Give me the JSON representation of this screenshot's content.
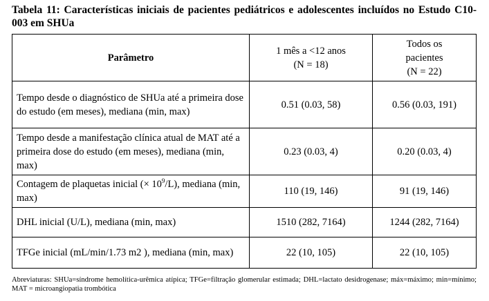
{
  "caption": "Tabela 11: Características iniciais de pacientes pediátricos e adolescentes incluídos no Estudo C10-003 em SHUa",
  "table": {
    "headers": {
      "parameter": "Parâmetro",
      "col1_line1": "1 mês a <12 anos",
      "col1_line2": "(N = 18)",
      "col2_line1": "Todos os",
      "col2_line2": "pacientes",
      "col2_line3": "(N = 22)"
    },
    "rows": [
      {
        "parameter": "Tempo desde o diagnóstico de SHUa até a primeira dose do estudo (em meses), mediana (min, max)",
        "col1": "0.51 (0.03, 58)",
        "col2": "0.56 (0.03, 191)"
      },
      {
        "parameter": "Tempo desde a manifestação clínica atual de MAT até a primeira dose do estudo (em meses), mediana (min, max)",
        "col1": "0.23 (0.03, 4)",
        "col2": "0.20 (0.03, 4)"
      },
      {
        "parameter_pre": "Contagem de plaquetas inicial (× 10",
        "parameter_sup": "9",
        "parameter_post": "/L), mediana (min, max)",
        "col1": "110 (19, 146)",
        "col2": "91 (19, 146)"
      },
      {
        "parameter": "DHL inicial (U/L), mediana (min, max)",
        "col1": "1510 (282, 7164)",
        "col2": "1244 (282, 7164)"
      },
      {
        "parameter": "TFGe inicial (mL/min/1.73 m2 ), mediana (min, max)",
        "col1": "22 (10, 105)",
        "col2": "22 (10, 105)"
      }
    ]
  },
  "footnote": "Abreviaturas: SHUa=síndrome hemolítica-urêmica atípica; TFGe=filtração glomerular estimada; DHL=lactato desidrogenase; máx=máximo; min=mínimo; MAT = microangiopatia trombótica"
}
